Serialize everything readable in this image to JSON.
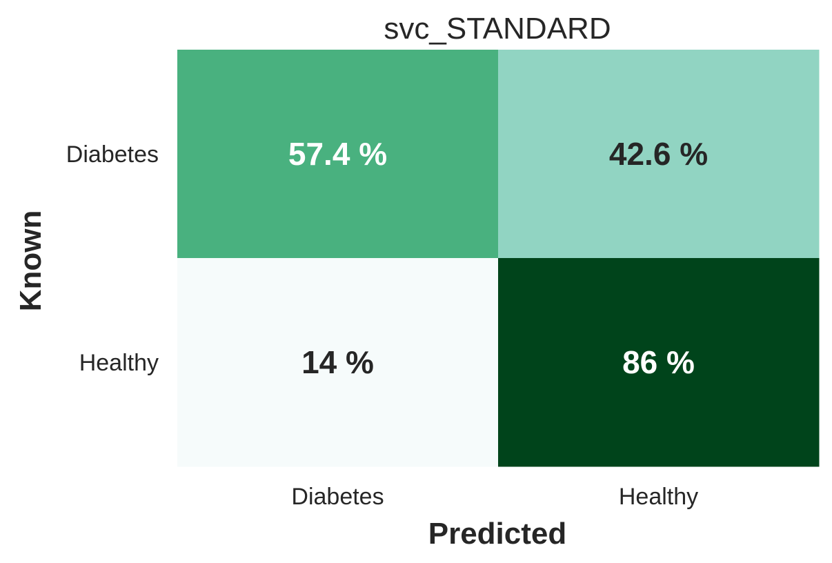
{
  "chart_data": {
    "type": "heatmap",
    "title": "svc_STANDARD",
    "xlabel": "Predicted",
    "ylabel": "Known",
    "x_categories": [
      "Diabetes",
      "Healthy"
    ],
    "y_categories": [
      "Diabetes",
      "Healthy"
    ],
    "values": [
      [
        57.4,
        42.6
      ],
      [
        14,
        86
      ]
    ],
    "cell_labels": [
      [
        "57.4 %",
        "42.6 %"
      ],
      [
        "14 %",
        "86 %"
      ]
    ],
    "colors": {
      "cells": [
        [
          "#49b17f",
          "#91d4c2"
        ],
        [
          "#f6fbfb",
          "#00441b"
        ]
      ],
      "dark_text": "#262626",
      "light_text": "#ffffff"
    },
    "colormap": "BuGn",
    "colorbar": false,
    "grid": false
  }
}
